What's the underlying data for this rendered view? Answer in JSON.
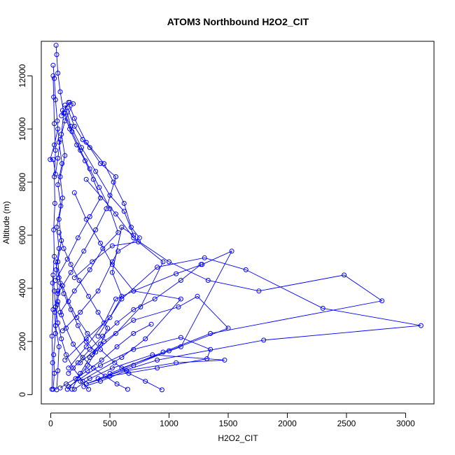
{
  "chart_data": {
    "type": "scatter",
    "title": "ATOM3 Northbound H2O2_CIT",
    "xlabel": "H2O2_CIT",
    "ylabel": "Altitude (m)",
    "xlim": [
      -80,
      3240
    ],
    "ylim": [
      -350,
      13300
    ],
    "xticks": [
      0,
      500,
      1000,
      1500,
      2000,
      2500,
      3000
    ],
    "yticks": [
      0,
      2000,
      4000,
      6000,
      8000,
      10000,
      12000
    ],
    "grid": false,
    "legend": "none",
    "series_color": "#0000ff",
    "marker": "open-circle",
    "connected": true,
    "series": [
      {
        "values": [
          [
            50,
            180
          ],
          [
            60,
            900
          ],
          [
            70,
            1800
          ],
          [
            40,
            2600
          ],
          [
            55,
            3400
          ],
          [
            80,
            4200
          ],
          [
            60,
            5000
          ],
          [
            90,
            5800
          ],
          [
            70,
            6600
          ],
          [
            100,
            7400
          ],
          [
            80,
            8200
          ],
          [
            120,
            9000
          ],
          [
            90,
            9800
          ],
          [
            110,
            10600
          ],
          [
            80,
            11400
          ],
          [
            60,
            12100
          ],
          [
            50,
            12800
          ],
          [
            45,
            13150
          ]
        ]
      },
      {
        "values": [
          [
            20,
            200
          ],
          [
            30,
            800
          ],
          [
            25,
            1500
          ],
          [
            40,
            2300
          ],
          [
            35,
            3100
          ],
          [
            60,
            3900
          ],
          [
            45,
            4700
          ],
          [
            70,
            5500
          ],
          [
            50,
            6300
          ],
          [
            85,
            7100
          ],
          [
            60,
            7900
          ],
          [
            95,
            8700
          ],
          [
            70,
            9500
          ],
          [
            55,
            10300
          ],
          [
            40,
            11100
          ],
          [
            30,
            11900
          ],
          [
            20,
            12400
          ]
        ]
      },
      {
        "values": [
          [
            200,
            200
          ],
          [
            330,
            600
          ],
          [
            520,
            1000
          ],
          [
            860,
            1500
          ],
          [
            1470,
            1300
          ],
          [
            1060,
            1200
          ],
          [
            640,
            900
          ],
          [
            420,
            500
          ],
          [
            280,
            300
          ]
        ]
      },
      {
        "values": [
          [
            150,
            300
          ],
          [
            420,
            1100
          ],
          [
            700,
            1700
          ],
          [
            1100,
            2150
          ],
          [
            1350,
            1700
          ],
          [
            1320,
            1350
          ],
          [
            900,
            1000
          ],
          [
            500,
            700
          ],
          [
            300,
            400
          ]
        ]
      },
      {
        "values": [
          [
            300,
            400
          ],
          [
            700,
            1100
          ],
          [
            1000,
            1650
          ],
          [
            1500,
            2500
          ],
          [
            1240,
            3700
          ],
          [
            1080,
            3300
          ],
          [
            700,
            2800
          ],
          [
            450,
            2000
          ],
          [
            250,
            1200
          ]
        ]
      },
      {
        "values": [
          [
            400,
            600
          ],
          [
            900,
            1300
          ],
          [
            1800,
            2050
          ],
          [
            3130,
            2600
          ],
          [
            2300,
            3250
          ],
          [
            1650,
            4700
          ],
          [
            1300,
            5150
          ],
          [
            900,
            4800
          ],
          [
            600,
            3600
          ],
          [
            400,
            2200
          ]
        ]
      },
      {
        "values": [
          [
            500,
            800
          ],
          [
            950,
            1600
          ],
          [
            1350,
            2300
          ],
          [
            2800,
            3530
          ],
          [
            2480,
            4500
          ],
          [
            1760,
            3900
          ],
          [
            1330,
            4300
          ],
          [
            1000,
            5000
          ],
          [
            700,
            5900
          ],
          [
            550,
            6800
          ],
          [
            300,
            8100
          ]
        ]
      },
      {
        "values": [
          [
            600,
            1000
          ],
          [
            1100,
            1800
          ],
          [
            1530,
            5400
          ],
          [
            1280,
            4900
          ],
          [
            1060,
            4550
          ],
          [
            700,
            3900
          ],
          [
            520,
            4900
          ],
          [
            420,
            5700
          ],
          [
            300,
            6600
          ],
          [
            200,
            7600
          ]
        ]
      },
      {
        "values": [
          [
            350,
            1500
          ],
          [
            550,
            2300
          ],
          [
            760,
            3300
          ],
          [
            950,
            5000
          ],
          [
            740,
            5750
          ],
          [
            520,
            5600
          ],
          [
            350,
            5000
          ],
          [
            200,
            4400
          ]
        ]
      },
      {
        "values": [
          [
            250,
            500
          ],
          [
            600,
            1400
          ],
          [
            800,
            2100
          ],
          [
            1100,
            3600
          ],
          [
            700,
            3900
          ],
          [
            550,
            3600
          ],
          [
            450,
            2700
          ],
          [
            300,
            1800
          ],
          [
            150,
            1000
          ]
        ]
      },
      {
        "values": [
          [
            120,
            1300
          ],
          [
            300,
            2100
          ],
          [
            500,
            2900
          ],
          [
            600,
            3700
          ],
          [
            520,
            4600
          ],
          [
            600,
            6300
          ],
          [
            700,
            6000
          ],
          [
            620,
            6900
          ],
          [
            500,
            7500
          ],
          [
            380,
            8400
          ],
          [
            260,
            9300
          ],
          [
            170,
            10100
          ],
          [
            120,
            10900
          ]
        ]
      },
      {
        "values": [
          [
            100,
            2400
          ],
          [
            250,
            3100
          ],
          [
            400,
            3900
          ],
          [
            520,
            5000
          ],
          [
            570,
            5400
          ],
          [
            750,
            5900
          ],
          [
            680,
            6300
          ],
          [
            620,
            7200
          ],
          [
            530,
            8000
          ],
          [
            450,
            8700
          ],
          [
            300,
            9500
          ],
          [
            200,
            10400
          ],
          [
            150,
            11000
          ]
        ]
      },
      {
        "values": [
          [
            80,
            3100
          ],
          [
            200,
            3900
          ],
          [
            330,
            4700
          ],
          [
            440,
            5500
          ],
          [
            570,
            6100
          ],
          [
            500,
            7000
          ],
          [
            410,
            7800
          ],
          [
            330,
            8500
          ],
          [
            250,
            9200
          ],
          [
            180,
            9900
          ],
          [
            120,
            10600
          ]
        ]
      },
      {
        "values": [
          [
            60,
            3800
          ],
          [
            170,
            4600
          ],
          [
            280,
            5400
          ],
          [
            380,
            6200
          ],
          [
            470,
            7000
          ],
          [
            550,
            8200
          ],
          [
            420,
            8700
          ],
          [
            330,
            9300
          ],
          [
            270,
            9600
          ],
          [
            200,
            10100
          ],
          [
            140,
            10800
          ]
        ]
      },
      {
        "values": [
          [
            40,
            4300
          ],
          [
            140,
            5100
          ],
          [
            230,
            5900
          ],
          [
            330,
            6700
          ],
          [
            420,
            7400
          ],
          [
            360,
            8100
          ],
          [
            290,
            8800
          ],
          [
            220,
            9400
          ],
          [
            160,
            10000
          ],
          [
            100,
            10700
          ]
        ]
      },
      {
        "values": [
          [
            180,
            200
          ],
          [
            250,
            800
          ],
          [
            330,
            1400
          ],
          [
            420,
            1900
          ],
          [
            480,
            2500
          ],
          [
            400,
            3100
          ],
          [
            320,
            3700
          ],
          [
            240,
            4300
          ],
          [
            170,
            4900
          ],
          [
            110,
            5500
          ],
          [
            70,
            6100
          ]
        ]
      },
      {
        "values": [
          [
            140,
            200
          ],
          [
            230,
            600
          ],
          [
            310,
            1100
          ],
          [
            380,
            1600
          ],
          [
            300,
            2000
          ],
          [
            230,
            2600
          ],
          [
            170,
            3200
          ],
          [
            110,
            3800
          ],
          [
            70,
            4400
          ],
          [
            40,
            5000
          ]
        ]
      },
      {
        "values": [
          [
            320,
            200
          ],
          [
            270,
            500
          ],
          [
            190,
            1000
          ],
          [
            130,
            1500
          ],
          [
            90,
            2100
          ],
          [
            60,
            2700
          ],
          [
            40,
            3300
          ],
          [
            30,
            3900
          ],
          [
            20,
            4500
          ]
        ]
      },
      {
        "values": [
          [
            650,
            200
          ],
          [
            560,
            400
          ],
          [
            460,
            700
          ],
          [
            360,
            1000
          ],
          [
            270,
            1400
          ],
          [
            190,
            1900
          ],
          [
            130,
            2500
          ],
          [
            90,
            3000
          ],
          [
            60,
            3500
          ]
        ]
      },
      {
        "values": [
          [
            940,
            180
          ],
          [
            800,
            500
          ],
          [
            660,
            800
          ],
          [
            540,
            1200
          ],
          [
            420,
            1700
          ],
          [
            310,
            2300
          ],
          [
            220,
            2900
          ],
          [
            150,
            3500
          ],
          [
            100,
            4100
          ]
        ]
      },
      {
        "values": [
          [
            850,
            2650
          ],
          [
            700,
            2300
          ],
          [
            560,
            1800
          ],
          [
            430,
            1300
          ],
          [
            310,
            900
          ],
          [
            210,
            600
          ],
          [
            130,
            400
          ],
          [
            80,
            250
          ]
        ]
      },
      {
        "values": [
          [
            1270,
            4900
          ],
          [
            1100,
            4300
          ],
          [
            880,
            3600
          ],
          [
            700,
            3200
          ],
          [
            560,
            2700
          ],
          [
            440,
            2200
          ],
          [
            330,
            1700
          ],
          [
            230,
            1200
          ],
          [
            150,
            800
          ]
        ]
      },
      {
        "values": [
          [
            10,
            200
          ],
          [
            15,
            1200
          ],
          [
            10,
            2200
          ],
          [
            20,
            3200
          ],
          [
            15,
            4200
          ],
          [
            30,
            5200
          ],
          [
            25,
            6200
          ],
          [
            35,
            7200
          ],
          [
            30,
            8200
          ],
          [
            40,
            9200
          ],
          [
            30,
            10200
          ],
          [
            25,
            11200
          ],
          [
            20,
            12000
          ]
        ]
      },
      {
        "values": [
          [
            90,
            10500
          ],
          [
            160,
            11000
          ],
          [
            190,
            10950
          ],
          [
            120,
            10300
          ],
          [
            80,
            9600
          ],
          [
            60,
            8900
          ],
          [
            40,
            8300
          ],
          [
            20,
            8850
          ],
          [
            -5,
            8850
          ],
          [
            30,
            9400
          ],
          [
            60,
            10000
          ]
        ]
      }
    ]
  }
}
